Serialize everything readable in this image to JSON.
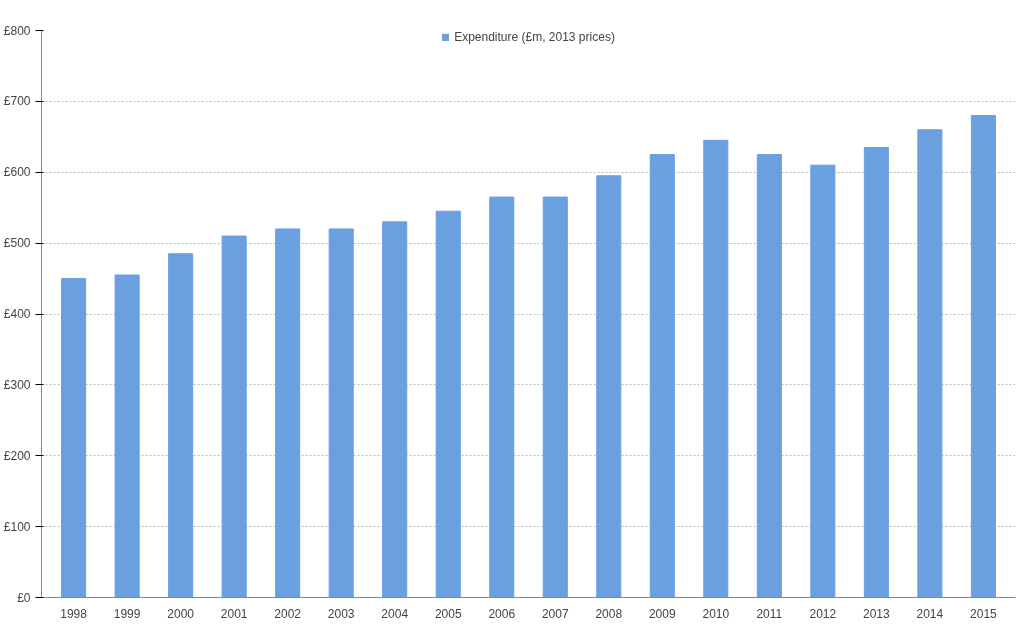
{
  "chart_data": {
    "type": "bar",
    "categories": [
      "1998",
      "1999",
      "2000",
      "2001",
      "2002",
      "2003",
      "2004",
      "2005",
      "2006",
      "2007",
      "2008",
      "2009",
      "2010",
      "2011",
      "2012",
      "2013",
      "2014",
      "2015"
    ],
    "series": [
      {
        "name": "Expenditure (£m, 2013 prices)",
        "color": "#6a9fe0",
        "values": [
          450,
          455,
          485,
          510,
          520,
          520,
          530,
          545,
          565,
          565,
          595,
          625,
          645,
          625,
          610,
          635,
          660,
          680
        ]
      }
    ],
    "ylim": [
      0,
      800
    ],
    "yticks": [
      {
        "value": 0,
        "label": "£0"
      },
      {
        "value": 100,
        "label": "£100"
      },
      {
        "value": 200,
        "label": "£200"
      },
      {
        "value": 300,
        "label": "£300"
      },
      {
        "value": 400,
        "label": "£400"
      },
      {
        "value": 500,
        "label": "£500"
      },
      {
        "value": 600,
        "label": "£600"
      },
      {
        "value": 700,
        "label": "£700"
      },
      {
        "value": 800,
        "label": "£800"
      }
    ],
    "grid": "y",
    "legend": "top"
  }
}
